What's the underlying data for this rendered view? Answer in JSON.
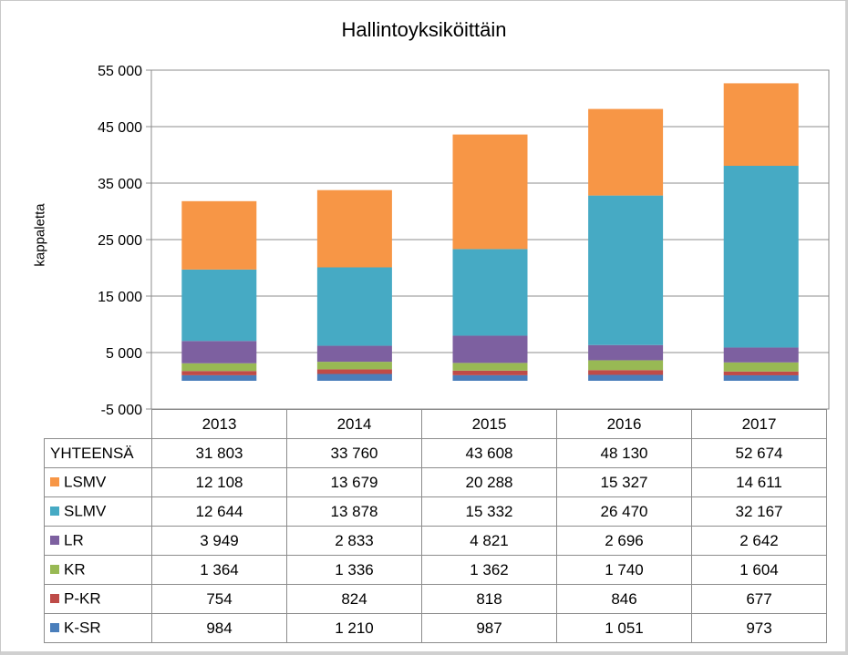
{
  "chart_data": {
    "type": "bar",
    "stacked": true,
    "title": "Hallintoyksiköittäin",
    "xlabel": "",
    "ylabel": "kappaletta",
    "ylim": [
      -5000,
      55000
    ],
    "yticks": [
      -5000,
      5000,
      15000,
      25000,
      35000,
      45000,
      55000
    ],
    "ytick_labels": [
      "-5 000",
      "5 000",
      "15 000",
      "25 000",
      "35 000",
      "45 000",
      "55 000"
    ],
    "grid": true,
    "legend": "data-table",
    "categories": [
      "2013",
      "2014",
      "2015",
      "2016",
      "2017"
    ],
    "series": [
      {
        "name": "K-SR",
        "color": "#4a7ebb",
        "values": [
          984,
          1210,
          987,
          1051,
          973
        ],
        "labels": [
          "984",
          "1 210",
          "987",
          "1 051",
          "973"
        ]
      },
      {
        "name": "P-KR",
        "color": "#be4b48",
        "values": [
          754,
          824,
          818,
          846,
          677
        ],
        "labels": [
          "754",
          "824",
          "818",
          "846",
          "677"
        ]
      },
      {
        "name": "KR",
        "color": "#98b954",
        "values": [
          1364,
          1336,
          1362,
          1740,
          1604
        ],
        "labels": [
          "1 364",
          "1 336",
          "1 362",
          "1 740",
          "1 604"
        ]
      },
      {
        "name": "LR",
        "color": "#7d60a0",
        "values": [
          3949,
          2833,
          4821,
          2696,
          2642
        ],
        "labels": [
          "3 949",
          "2 833",
          "4 821",
          "2 696",
          "2 642"
        ]
      },
      {
        "name": "SLMV",
        "color": "#46aac4",
        "values": [
          12644,
          13878,
          15332,
          26470,
          32167
        ],
        "labels": [
          "12 644",
          "13 878",
          "15 332",
          "26 470",
          "32 167"
        ]
      },
      {
        "name": "LSMV",
        "color": "#f79646",
        "values": [
          12108,
          13679,
          20288,
          15327,
          14611
        ],
        "labels": [
          "12 108",
          "13 679",
          "20 288",
          "15 327",
          "14 611"
        ]
      }
    ],
    "totals": {
      "name": "YHTEENSÄ",
      "values": [
        31803,
        33760,
        43608,
        48130,
        52674
      ],
      "labels": [
        "31 803",
        "33 760",
        "43 608",
        "48 130",
        "52 674"
      ]
    },
    "table_row_order": [
      "LSMV",
      "SLMV",
      "LR",
      "KR",
      "P-KR",
      "K-SR"
    ]
  }
}
